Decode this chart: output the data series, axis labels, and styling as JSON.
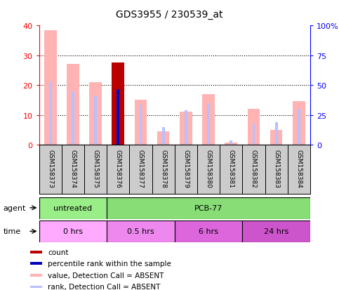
{
  "title": "GDS3955 / 230539_at",
  "samples": [
    "GSM158373",
    "GSM158374",
    "GSM158375",
    "GSM158376",
    "GSM158377",
    "GSM158378",
    "GSM158379",
    "GSM158380",
    "GSM158381",
    "GSM158382",
    "GSM158383",
    "GSM158384"
  ],
  "value_bars": [
    38.5,
    27.0,
    21.0,
    0.0,
    15.0,
    4.5,
    11.0,
    17.0,
    0.8,
    12.0,
    5.0,
    14.5
  ],
  "count_bar_value": 27.5,
  "count_bar_idx": 3,
  "rank_bar_heights": [
    21.0,
    18.0,
    16.5,
    0.0,
    13.5,
    6.0,
    11.5,
    14.0,
    1.5,
    7.0,
    7.5,
    12.0
  ],
  "percentile_bar_value": 18.5,
  "percentile_bar_idx": 3,
  "value_color": "#FFB3B3",
  "rank_color": "#B8C0FF",
  "count_color": "#BB0000",
  "percentile_color": "#0000BB",
  "ylim_left": [
    0,
    40
  ],
  "ylim_right": [
    0,
    100
  ],
  "yticks_left": [
    0,
    10,
    20,
    30,
    40
  ],
  "yticks_right": [
    0,
    25,
    50,
    75,
    100
  ],
  "yticklabels_right": [
    "0",
    "25",
    "50",
    "75",
    "100%"
  ],
  "agent_groups": [
    {
      "label": "untreated",
      "start": 0,
      "end": 3,
      "color": "#99EE88"
    },
    {
      "label": "PCB-77",
      "start": 3,
      "end": 12,
      "color": "#88DD77"
    }
  ],
  "time_groups": [
    {
      "label": "0 hrs",
      "start": 0,
      "end": 3,
      "color": "#FFAAFF"
    },
    {
      "label": "0.5 hrs",
      "start": 3,
      "end": 6,
      "color": "#EE88EE"
    },
    {
      "label": "6 hrs",
      "start": 6,
      "end": 9,
      "color": "#DD66DD"
    },
    {
      "label": "24 hrs",
      "start": 9,
      "end": 12,
      "color": "#CC55CC"
    }
  ],
  "legend_items": [
    {
      "label": "count",
      "color": "#BB0000"
    },
    {
      "label": "percentile rank within the sample",
      "color": "#0000BB"
    },
    {
      "label": "value, Detection Call = ABSENT",
      "color": "#FFB3B3"
    },
    {
      "label": "rank, Detection Call = ABSENT",
      "color": "#B8C0FF"
    }
  ]
}
